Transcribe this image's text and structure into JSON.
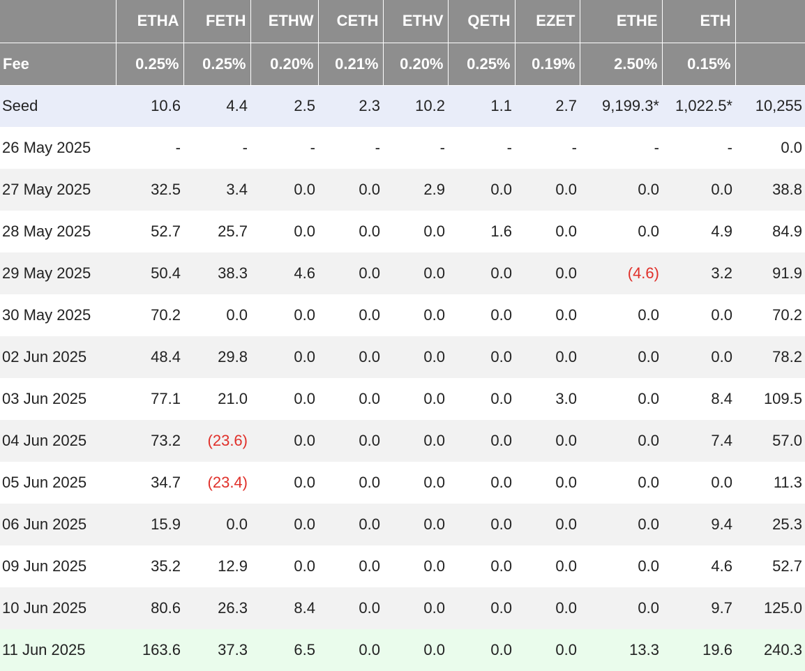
{
  "chart_data": {
    "type": "table",
    "columns": [
      "",
      "ETHA",
      "FETH",
      "ETHW",
      "CETH",
      "ETHV",
      "QETH",
      "EZET",
      "ETHE",
      "ETH",
      ""
    ],
    "fee": {
      "label": "Fee",
      "values": [
        "0.25%",
        "0.25%",
        "0.20%",
        "0.21%",
        "0.20%",
        "0.25%",
        "0.19%",
        "2.50%",
        "0.15%",
        ""
      ]
    },
    "rows": [
      {
        "label": "Seed",
        "style": "seed",
        "values": [
          "10.6",
          "4.4",
          "2.5",
          "2.3",
          "10.2",
          "1.1",
          "2.7",
          "9,199.3*",
          "1,022.5*",
          "10,255"
        ]
      },
      {
        "label": "26 May 2025",
        "style": "plain",
        "values": [
          "-",
          "-",
          "-",
          "-",
          "-",
          "-",
          "-",
          "-",
          "-",
          "0.0"
        ]
      },
      {
        "label": "27 May 2025",
        "style": "alt",
        "values": [
          "32.5",
          "3.4",
          "0.0",
          "0.0",
          "2.9",
          "0.0",
          "0.0",
          "0.0",
          "0.0",
          "38.8"
        ]
      },
      {
        "label": "28 May 2025",
        "style": "plain",
        "values": [
          "52.7",
          "25.7",
          "0.0",
          "0.0",
          "0.0",
          "1.6",
          "0.0",
          "0.0",
          "4.9",
          "84.9"
        ]
      },
      {
        "label": "29 May 2025",
        "style": "alt",
        "values": [
          "50.4",
          "38.3",
          "4.6",
          "0.0",
          "0.0",
          "0.0",
          "0.0",
          "(4.6)",
          "3.2",
          "91.9"
        ]
      },
      {
        "label": "30 May 2025",
        "style": "plain",
        "values": [
          "70.2",
          "0.0",
          "0.0",
          "0.0",
          "0.0",
          "0.0",
          "0.0",
          "0.0",
          "0.0",
          "70.2"
        ]
      },
      {
        "label": "02 Jun 2025",
        "style": "alt",
        "values": [
          "48.4",
          "29.8",
          "0.0",
          "0.0",
          "0.0",
          "0.0",
          "0.0",
          "0.0",
          "0.0",
          "78.2"
        ]
      },
      {
        "label": "03 Jun 2025",
        "style": "plain",
        "values": [
          "77.1",
          "21.0",
          "0.0",
          "0.0",
          "0.0",
          "0.0",
          "3.0",
          "0.0",
          "8.4",
          "109.5"
        ]
      },
      {
        "label": "04 Jun 2025",
        "style": "alt",
        "values": [
          "73.2",
          "(23.6)",
          "0.0",
          "0.0",
          "0.0",
          "0.0",
          "0.0",
          "0.0",
          "7.4",
          "57.0"
        ]
      },
      {
        "label": "05 Jun 2025",
        "style": "plain",
        "values": [
          "34.7",
          "(23.4)",
          "0.0",
          "0.0",
          "0.0",
          "0.0",
          "0.0",
          "0.0",
          "0.0",
          "11.3"
        ]
      },
      {
        "label": "06 Jun 2025",
        "style": "alt",
        "values": [
          "15.9",
          "0.0",
          "0.0",
          "0.0",
          "0.0",
          "0.0",
          "0.0",
          "0.0",
          "9.4",
          "25.3"
        ]
      },
      {
        "label": "09 Jun 2025",
        "style": "plain",
        "values": [
          "35.2",
          "12.9",
          "0.0",
          "0.0",
          "0.0",
          "0.0",
          "0.0",
          "0.0",
          "4.6",
          "52.7"
        ]
      },
      {
        "label": "10 Jun 2025",
        "style": "alt",
        "values": [
          "80.6",
          "26.3",
          "8.4",
          "0.0",
          "0.0",
          "0.0",
          "0.0",
          "0.0",
          "9.7",
          "125.0"
        ]
      },
      {
        "label": "11 Jun 2025",
        "style": "latest",
        "values": [
          "163.6",
          "37.3",
          "6.5",
          "0.0",
          "0.0",
          "0.0",
          "0.0",
          "13.3",
          "19.6",
          "240.3"
        ]
      }
    ]
  }
}
